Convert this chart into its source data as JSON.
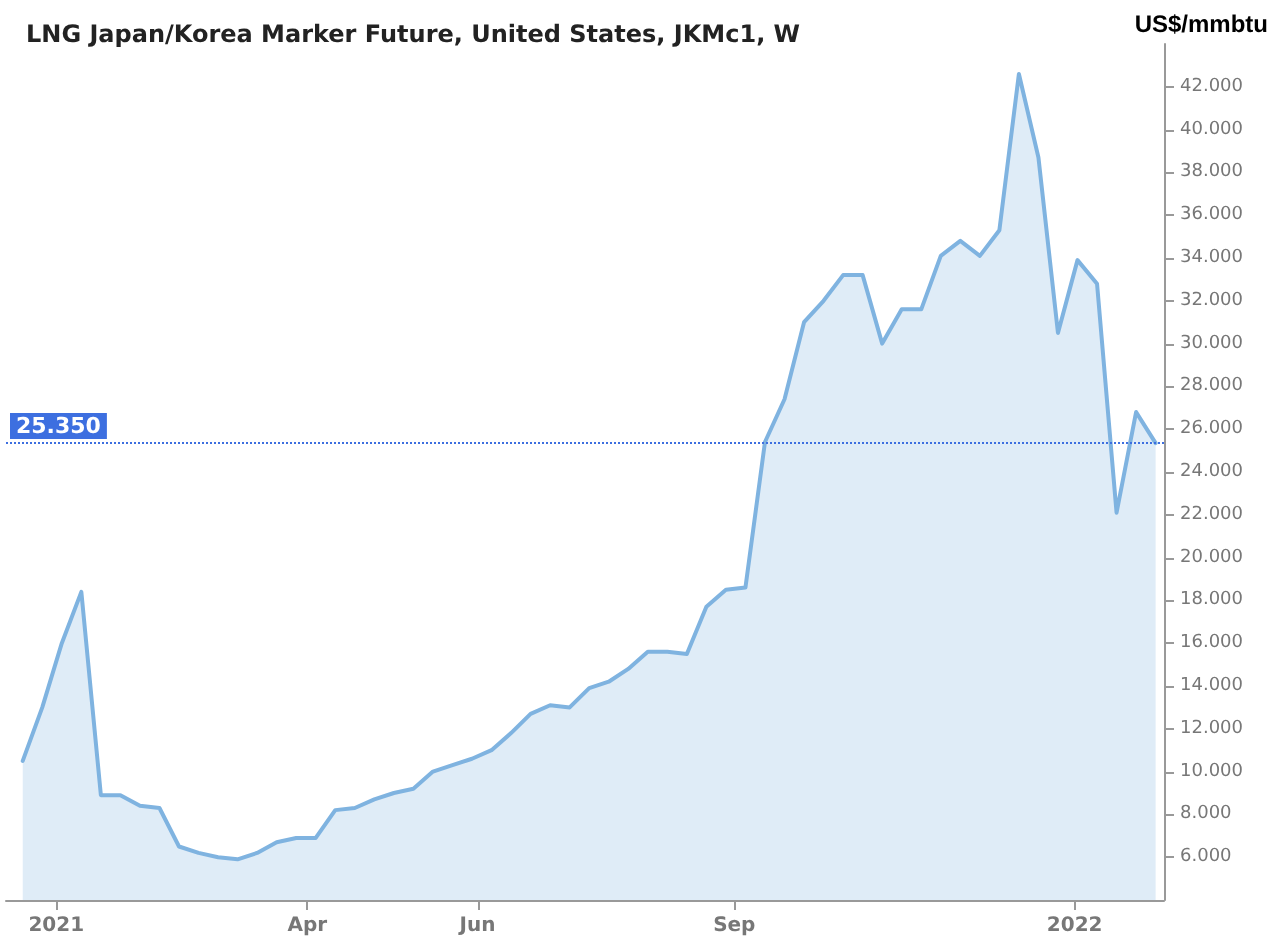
{
  "chart_data": {
    "type": "area",
    "title": "LNG Japan/Korea Marker Future, United States, JKMc1, W",
    "ylabel": "US$/mmbtu",
    "x": [
      "2020-12-20",
      "2020-12-27",
      "2021-01-03",
      "2021-01-10",
      "2021-01-17",
      "2021-01-24",
      "2021-01-31",
      "2021-02-07",
      "2021-02-14",
      "2021-02-21",
      "2021-02-28",
      "2021-03-07",
      "2021-03-14",
      "2021-03-21",
      "2021-03-28",
      "2021-04-04",
      "2021-04-11",
      "2021-04-18",
      "2021-04-25",
      "2021-05-02",
      "2021-05-09",
      "2021-05-16",
      "2021-05-23",
      "2021-05-30",
      "2021-06-06",
      "2021-06-13",
      "2021-06-20",
      "2021-06-27",
      "2021-07-04",
      "2021-07-11",
      "2021-07-18",
      "2021-07-25",
      "2021-08-01",
      "2021-08-08",
      "2021-08-15",
      "2021-08-22",
      "2021-08-29",
      "2021-09-05",
      "2021-09-12",
      "2021-09-19",
      "2021-09-26",
      "2021-10-03",
      "2021-10-10",
      "2021-10-17",
      "2021-10-24",
      "2021-10-31",
      "2021-11-07",
      "2021-11-14",
      "2021-11-21",
      "2021-11-28",
      "2021-12-05",
      "2021-12-12",
      "2021-12-19",
      "2021-12-26",
      "2022-01-02",
      "2022-01-09",
      "2022-01-16",
      "2022-01-23",
      "2022-01-30"
    ],
    "series": [
      {
        "color": "#7fb3e0",
        "values": [
          10.5,
          13.0,
          16.0,
          18.4,
          8.9,
          8.9,
          8.4,
          8.3,
          6.5,
          6.2,
          6.0,
          5.9,
          6.2,
          6.7,
          6.9,
          6.9,
          8.2,
          8.3,
          8.7,
          9.0,
          9.2,
          10.0,
          10.3,
          10.6,
          11.0,
          11.8,
          12.7,
          13.1,
          13.0,
          13.9,
          14.2,
          14.8,
          15.6,
          15.6,
          15.5,
          17.7,
          18.5,
          18.6,
          25.4,
          27.4,
          31.0,
          32.0,
          33.2,
          33.2,
          30.0,
          31.6,
          31.6,
          34.1,
          34.8,
          34.1,
          35.3,
          42.6,
          38.7,
          30.5,
          33.9,
          32.8,
          22.1,
          26.8,
          25.35
        ]
      }
    ],
    "xlim": [
      "2020-12-14",
      "2022-02-02"
    ],
    "xticks": [
      {
        "value": "2021-01-01",
        "label": "2021"
      },
      {
        "value": "2021-04-01",
        "label": "Apr"
      },
      {
        "value": "2021-06-01",
        "label": "Jun"
      },
      {
        "value": "2021-09-01",
        "label": "Sep"
      },
      {
        "value": "2022-01-01",
        "label": "2022"
      }
    ],
    "ylim": [
      4,
      44
    ],
    "yticks": [
      {
        "value": 6,
        "label": "6.000"
      },
      {
        "value": 8,
        "label": "8.000"
      },
      {
        "value": 10,
        "label": "10.000"
      },
      {
        "value": 12,
        "label": "12.000"
      },
      {
        "value": 14,
        "label": "14.000"
      },
      {
        "value": 16,
        "label": "16.000"
      },
      {
        "value": 18,
        "label": "18.000"
      },
      {
        "value": 20,
        "label": "20.000"
      },
      {
        "value": 22,
        "label": "22.000"
      },
      {
        "value": 24,
        "label": "24.000"
      },
      {
        "value": 26,
        "label": "26.000"
      },
      {
        "value": 28,
        "label": "28.000"
      },
      {
        "value": 30,
        "label": "30.000"
      },
      {
        "value": 32,
        "label": "32.000"
      },
      {
        "value": 34,
        "label": "34.000"
      },
      {
        "value": 36,
        "label": "36.000"
      },
      {
        "value": 38,
        "label": "38.000"
      },
      {
        "value": 40,
        "label": "40.000"
      },
      {
        "value": 42,
        "label": "42.000"
      }
    ],
    "ref_lines": [
      {
        "axis": "y",
        "value": 25.35,
        "label": "25.350",
        "color": "#3d6fe0",
        "line_style": "dotted"
      }
    ],
    "grid": false,
    "marker": "none",
    "line_style": "solid"
  }
}
